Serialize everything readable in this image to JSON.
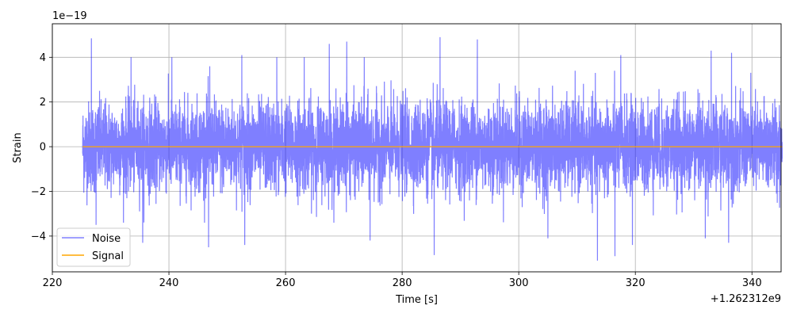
{
  "chart_data": {
    "type": "line",
    "xlabel": "Time [s]",
    "ylabel": "Strain",
    "x_offset_label": "+1.262312e9",
    "y_scale_label": "1e−19",
    "xlim": [
      220,
      345
    ],
    "ylim": [
      -5.6,
      5.5
    ],
    "x_ticks": [
      220,
      240,
      260,
      280,
      300,
      320,
      340
    ],
    "x_tick_labels": [
      "220",
      "240",
      "260",
      "280",
      "300",
      "320",
      "340"
    ],
    "y_ticks": [
      -4,
      -2,
      0,
      2,
      4
    ],
    "y_tick_labels": [
      "−4",
      "−2",
      "0",
      "2",
      "4"
    ],
    "grid": true,
    "legend_position": "lower-left",
    "series": [
      {
        "name": "Noise",
        "color": "#0000ff",
        "opacity": 0.5,
        "x_range": [
          225.2,
          345.2
        ],
        "approx_std": 1.0,
        "peaks": [
          {
            "x": 226.7,
            "y": 4.85
          },
          {
            "x": 233.5,
            "y": 4.0
          },
          {
            "x": 240.5,
            "y": 4.0
          },
          {
            "x": 247.0,
            "y": 3.6
          },
          {
            "x": 252.5,
            "y": 4.1
          },
          {
            "x": 258.5,
            "y": 4.0
          },
          {
            "x": 263.2,
            "y": 4.0
          },
          {
            "x": 267.5,
            "y": 4.6
          },
          {
            "x": 270.5,
            "y": 4.7
          },
          {
            "x": 273.5,
            "y": 4.0
          },
          {
            "x": 286.5,
            "y": 4.9
          },
          {
            "x": 292.9,
            "y": 4.8
          },
          {
            "x": 317.5,
            "y": 4.1
          },
          {
            "x": 333.0,
            "y": 4.3
          },
          {
            "x": 336.5,
            "y": 4.2
          },
          {
            "x": 227.5,
            "y": -3.5
          },
          {
            "x": 235.5,
            "y": -4.3
          },
          {
            "x": 246.8,
            "y": -4.5
          },
          {
            "x": 253.0,
            "y": -4.4
          },
          {
            "x": 274.5,
            "y": -4.2
          },
          {
            "x": 285.5,
            "y": -4.85
          },
          {
            "x": 305.0,
            "y": -4.1
          },
          {
            "x": 313.5,
            "y": -5.1
          },
          {
            "x": 316.5,
            "y": -4.9
          },
          {
            "x": 319.5,
            "y": -4.4
          },
          {
            "x": 332.0,
            "y": -4.1
          },
          {
            "x": 336.0,
            "y": -4.3
          }
        ]
      },
      {
        "name": "Signal",
        "color": "#ffa500",
        "x": [
          225.2,
          345.2
        ],
        "y": [
          0,
          0
        ]
      }
    ]
  }
}
